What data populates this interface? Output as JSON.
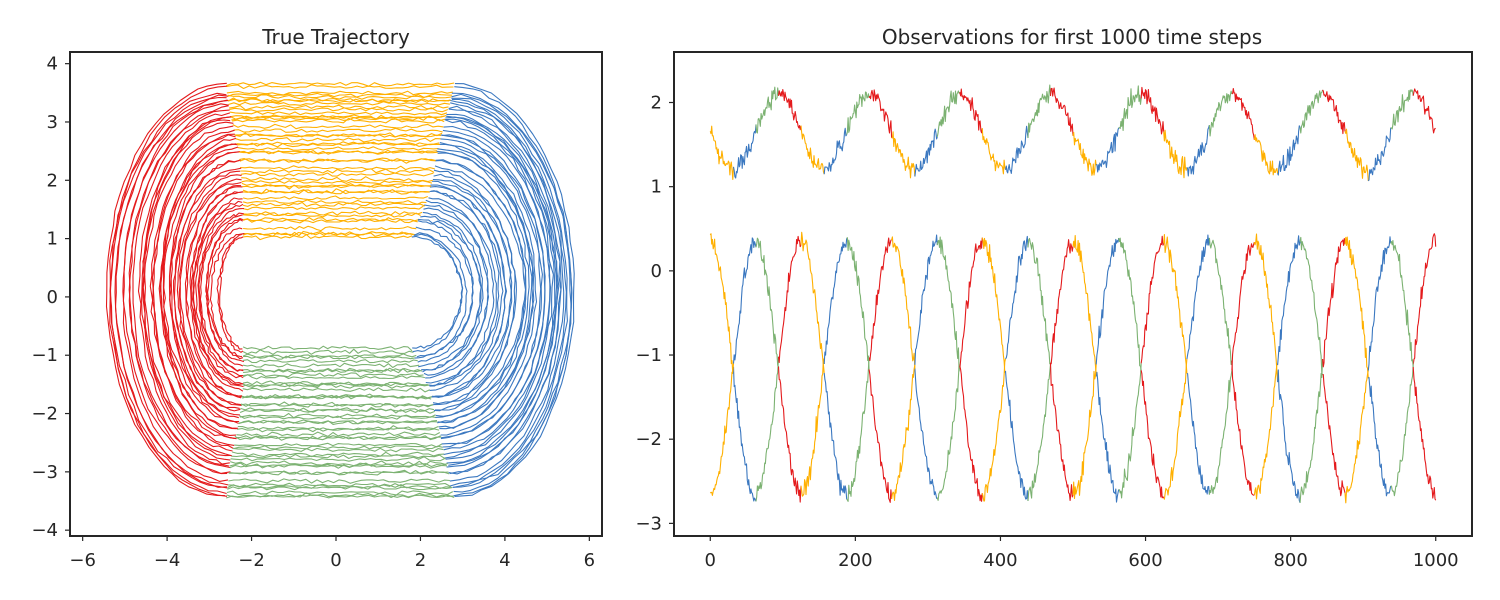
{
  "colors": {
    "left": "#e41a1c",
    "top": "#ffb000",
    "right": "#3b78c0",
    "bottom": "#7cb272"
  },
  "chart_data": [
    {
      "type": "line",
      "title": "True Trajectory",
      "xlabel": "",
      "ylabel": "",
      "xlim": [
        -6.3,
        6.3
      ],
      "ylim": [
        -4.1,
        4.2
      ],
      "xticks": [
        -6,
        -4,
        -2,
        0,
        2,
        4,
        6
      ],
      "xtick_labels": [
        "−6",
        "−4",
        "−2",
        "0",
        "2",
        "4",
        "6"
      ],
      "yticks": [
        -4,
        -3,
        -2,
        -1,
        0,
        1,
        2,
        3,
        4
      ],
      "ytick_labels": [
        "−4",
        "−3",
        "−2",
        "−1",
        "0",
        "1",
        "2",
        "3",
        "4"
      ],
      "grid": false,
      "segment_colors": {
        "left": "#e41a1c",
        "top": "#ffb000",
        "right": "#3b78c0",
        "bottom": "#7cb272"
      },
      "series": [
        {
          "line": 1,
          "straight_x_range": [
            -2.2,
            1.8
          ],
          "top_y": 1.0,
          "bottom_y": -0.9,
          "left_x": -2.8,
          "right_x": 3.0
        },
        {
          "line": 2,
          "straight_x_range": [
            -2.2,
            2.2
          ],
          "top_y": 1.75,
          "bottom_y": -1.55,
          "left_x": -3.45,
          "right_x": 3.85
        },
        {
          "line": 3,
          "straight_x_range": [
            -2.3,
            2.4
          ],
          "top_y": 2.45,
          "bottom_y": -2.15,
          "left_x": -4.0,
          "right_x": 4.6
        },
        {
          "line": 4,
          "straight_x_range": [
            -2.5,
            2.6
          ],
          "top_y": 3.1,
          "bottom_y": -2.8,
          "left_x": -4.65,
          "right_x": 5.2
        },
        {
          "line": 5,
          "straight_x_range": [
            -2.6,
            2.8
          ],
          "top_y": 3.6,
          "bottom_y": -3.45,
          "left_x": -5.5,
          "right_x": 5.6
        }
      ]
    },
    {
      "type": "line",
      "title": "Observations for first 1000 time steps",
      "xlabel": "",
      "ylabel": "",
      "xlim": [
        -50,
        1050
      ],
      "ylim": [
        -3.15,
        2.6
      ],
      "xticks": [
        0,
        200,
        400,
        600,
        800,
        1000
      ],
      "xtick_labels": [
        "0",
        "200",
        "400",
        "600",
        "800",
        "1000"
      ],
      "yticks": [
        -3,
        -2,
        -1,
        0,
        1,
        2
      ],
      "ytick_labels": [
        "−3",
        "−2",
        "−1",
        "0",
        "1",
        "2"
      ],
      "grid": false,
      "period": 125,
      "state_order": [
        "top",
        "right",
        "bottom",
        "left"
      ],
      "series": [
        {
          "name": "",
          "baseline": 1.65,
          "amplitude": 0.5,
          "noise": 0.08
        },
        {
          "name": "",
          "baseline": -1.15,
          "amplitude": 1.5,
          "noise": 0.08,
          "phase": 0
        },
        {
          "name": "",
          "baseline": -1.15,
          "amplitude": 1.5,
          "noise": 0.08,
          "phase": 0.5
        }
      ]
    }
  ]
}
